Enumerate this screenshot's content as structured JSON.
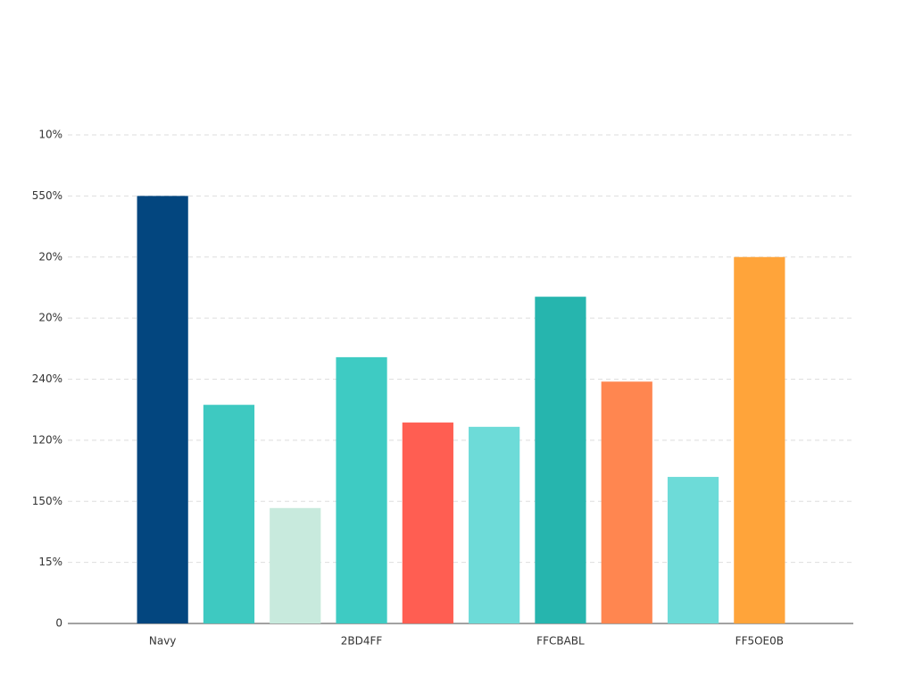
{
  "chart_data": {
    "type": "bar",
    "categories": [
      "Navy",
      null,
      null,
      "2BD4FF",
      null,
      null,
      "FFCBABL",
      null,
      null,
      "FF5OE0B"
    ],
    "values": [
      7.0,
      3.58,
      1.89,
      4.36,
      3.29,
      3.22,
      5.35,
      3.96,
      2.4,
      6.0
    ],
    "colors": [
      "#03467f",
      "#3ec9c1",
      "#c8eadd",
      "#3ecbc3",
      "#ff5e52",
      "#6ddbd8",
      "#26b5ae",
      "#ff8650",
      "#6ddbd8",
      "#ffa43a"
    ],
    "ylim": [
      0,
      8
    ],
    "yticks": [
      0,
      {
        "value": 1,
        "label": "15%"
      },
      {
        "value": 2,
        "label": "150%"
      },
      {
        "value": 3,
        "label": "120%"
      },
      {
        "value": 4,
        "label": "240%"
      },
      {
        "value": 5,
        "label": "20%"
      },
      {
        "value": 6,
        "label": "20%"
      },
      {
        "value": 7,
        "label": "550%"
      },
      {
        "value": 8,
        "label": "10%"
      }
    ],
    "grid": true
  }
}
